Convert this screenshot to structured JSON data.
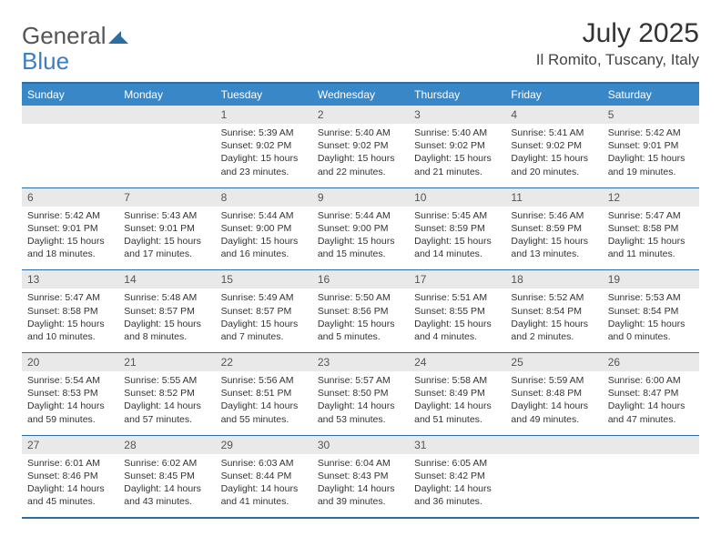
{
  "logo": {
    "text1": "General",
    "text2": "Blue"
  },
  "title": "July 2025",
  "location": "Il Romito, Tuscany, Italy",
  "header_bg": "#3a87c7",
  "border_color": "#2e6da4",
  "daynum_bg": "#e9e9e9",
  "day_names": [
    "Sunday",
    "Monday",
    "Tuesday",
    "Wednesday",
    "Thursday",
    "Friday",
    "Saturday"
  ],
  "weeks": [
    {
      "nums": [
        "",
        "",
        "1",
        "2",
        "3",
        "4",
        "5"
      ],
      "cells": [
        null,
        null,
        {
          "sunrise": "Sunrise: 5:39 AM",
          "sunset": "Sunset: 9:02 PM",
          "daylight": "Daylight: 15 hours and 23 minutes."
        },
        {
          "sunrise": "Sunrise: 5:40 AM",
          "sunset": "Sunset: 9:02 PM",
          "daylight": "Daylight: 15 hours and 22 minutes."
        },
        {
          "sunrise": "Sunrise: 5:40 AM",
          "sunset": "Sunset: 9:02 PM",
          "daylight": "Daylight: 15 hours and 21 minutes."
        },
        {
          "sunrise": "Sunrise: 5:41 AM",
          "sunset": "Sunset: 9:02 PM",
          "daylight": "Daylight: 15 hours and 20 minutes."
        },
        {
          "sunrise": "Sunrise: 5:42 AM",
          "sunset": "Sunset: 9:01 PM",
          "daylight": "Daylight: 15 hours and 19 minutes."
        }
      ]
    },
    {
      "nums": [
        "6",
        "7",
        "8",
        "9",
        "10",
        "11",
        "12"
      ],
      "cells": [
        {
          "sunrise": "Sunrise: 5:42 AM",
          "sunset": "Sunset: 9:01 PM",
          "daylight": "Daylight: 15 hours and 18 minutes."
        },
        {
          "sunrise": "Sunrise: 5:43 AM",
          "sunset": "Sunset: 9:01 PM",
          "daylight": "Daylight: 15 hours and 17 minutes."
        },
        {
          "sunrise": "Sunrise: 5:44 AM",
          "sunset": "Sunset: 9:00 PM",
          "daylight": "Daylight: 15 hours and 16 minutes."
        },
        {
          "sunrise": "Sunrise: 5:44 AM",
          "sunset": "Sunset: 9:00 PM",
          "daylight": "Daylight: 15 hours and 15 minutes."
        },
        {
          "sunrise": "Sunrise: 5:45 AM",
          "sunset": "Sunset: 8:59 PM",
          "daylight": "Daylight: 15 hours and 14 minutes."
        },
        {
          "sunrise": "Sunrise: 5:46 AM",
          "sunset": "Sunset: 8:59 PM",
          "daylight": "Daylight: 15 hours and 13 minutes."
        },
        {
          "sunrise": "Sunrise: 5:47 AM",
          "sunset": "Sunset: 8:58 PM",
          "daylight": "Daylight: 15 hours and 11 minutes."
        }
      ]
    },
    {
      "nums": [
        "13",
        "14",
        "15",
        "16",
        "17",
        "18",
        "19"
      ],
      "cells": [
        {
          "sunrise": "Sunrise: 5:47 AM",
          "sunset": "Sunset: 8:58 PM",
          "daylight": "Daylight: 15 hours and 10 minutes."
        },
        {
          "sunrise": "Sunrise: 5:48 AM",
          "sunset": "Sunset: 8:57 PM",
          "daylight": "Daylight: 15 hours and 8 minutes."
        },
        {
          "sunrise": "Sunrise: 5:49 AM",
          "sunset": "Sunset: 8:57 PM",
          "daylight": "Daylight: 15 hours and 7 minutes."
        },
        {
          "sunrise": "Sunrise: 5:50 AM",
          "sunset": "Sunset: 8:56 PM",
          "daylight": "Daylight: 15 hours and 5 minutes."
        },
        {
          "sunrise": "Sunrise: 5:51 AM",
          "sunset": "Sunset: 8:55 PM",
          "daylight": "Daylight: 15 hours and 4 minutes."
        },
        {
          "sunrise": "Sunrise: 5:52 AM",
          "sunset": "Sunset: 8:54 PM",
          "daylight": "Daylight: 15 hours and 2 minutes."
        },
        {
          "sunrise": "Sunrise: 5:53 AM",
          "sunset": "Sunset: 8:54 PM",
          "daylight": "Daylight: 15 hours and 0 minutes."
        }
      ]
    },
    {
      "nums": [
        "20",
        "21",
        "22",
        "23",
        "24",
        "25",
        "26"
      ],
      "cells": [
        {
          "sunrise": "Sunrise: 5:54 AM",
          "sunset": "Sunset: 8:53 PM",
          "daylight": "Daylight: 14 hours and 59 minutes."
        },
        {
          "sunrise": "Sunrise: 5:55 AM",
          "sunset": "Sunset: 8:52 PM",
          "daylight": "Daylight: 14 hours and 57 minutes."
        },
        {
          "sunrise": "Sunrise: 5:56 AM",
          "sunset": "Sunset: 8:51 PM",
          "daylight": "Daylight: 14 hours and 55 minutes."
        },
        {
          "sunrise": "Sunrise: 5:57 AM",
          "sunset": "Sunset: 8:50 PM",
          "daylight": "Daylight: 14 hours and 53 minutes."
        },
        {
          "sunrise": "Sunrise: 5:58 AM",
          "sunset": "Sunset: 8:49 PM",
          "daylight": "Daylight: 14 hours and 51 minutes."
        },
        {
          "sunrise": "Sunrise: 5:59 AM",
          "sunset": "Sunset: 8:48 PM",
          "daylight": "Daylight: 14 hours and 49 minutes."
        },
        {
          "sunrise": "Sunrise: 6:00 AM",
          "sunset": "Sunset: 8:47 PM",
          "daylight": "Daylight: 14 hours and 47 minutes."
        }
      ]
    },
    {
      "nums": [
        "27",
        "28",
        "29",
        "30",
        "31",
        "",
        ""
      ],
      "cells": [
        {
          "sunrise": "Sunrise: 6:01 AM",
          "sunset": "Sunset: 8:46 PM",
          "daylight": "Daylight: 14 hours and 45 minutes."
        },
        {
          "sunrise": "Sunrise: 6:02 AM",
          "sunset": "Sunset: 8:45 PM",
          "daylight": "Daylight: 14 hours and 43 minutes."
        },
        {
          "sunrise": "Sunrise: 6:03 AM",
          "sunset": "Sunset: 8:44 PM",
          "daylight": "Daylight: 14 hours and 41 minutes."
        },
        {
          "sunrise": "Sunrise: 6:04 AM",
          "sunset": "Sunset: 8:43 PM",
          "daylight": "Daylight: 14 hours and 39 minutes."
        },
        {
          "sunrise": "Sunrise: 6:05 AM",
          "sunset": "Sunset: 8:42 PM",
          "daylight": "Daylight: 14 hours and 36 minutes."
        },
        null,
        null
      ]
    }
  ]
}
